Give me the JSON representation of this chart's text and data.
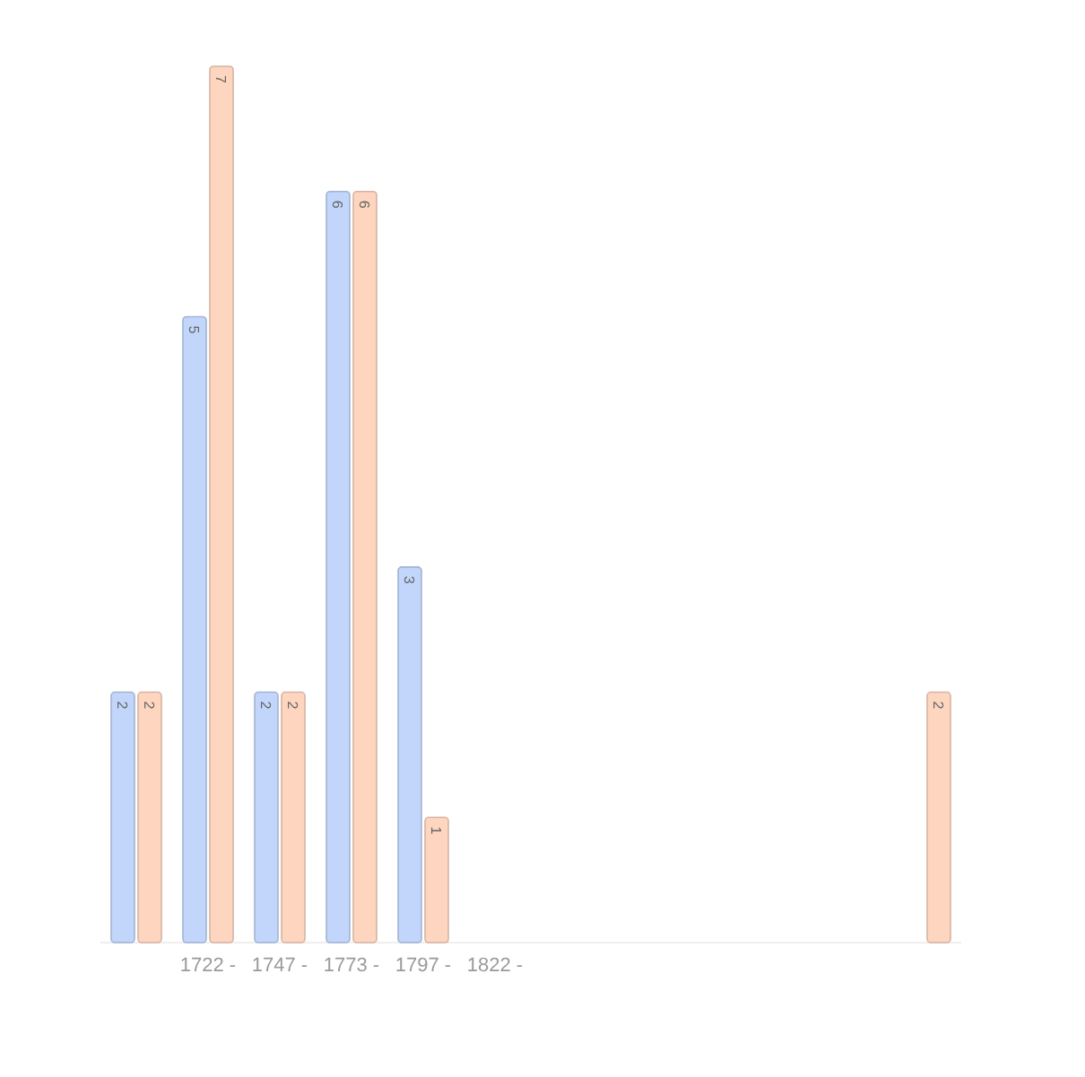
{
  "chart_data": {
    "type": "bar",
    "categories": [
      null,
      "1722 -",
      "1747 -",
      "1773 -",
      "1797 -",
      "1822 -",
      null,
      null,
      null,
      null,
      null,
      null
    ],
    "series": [
      {
        "color": "#c2d6fb",
        "values": [
          2,
          5,
          2,
          6,
          3,
          null,
          null,
          null,
          null,
          null,
          null,
          null
        ]
      },
      {
        "color": "#fed6c0",
        "values": [
          2,
          7,
          2,
          6,
          1,
          null,
          null,
          null,
          null,
          null,
          null,
          2
        ]
      }
    ],
    "ylim": [
      0,
      7
    ],
    "tick_labels": "x",
    "data_labels": true
  }
}
